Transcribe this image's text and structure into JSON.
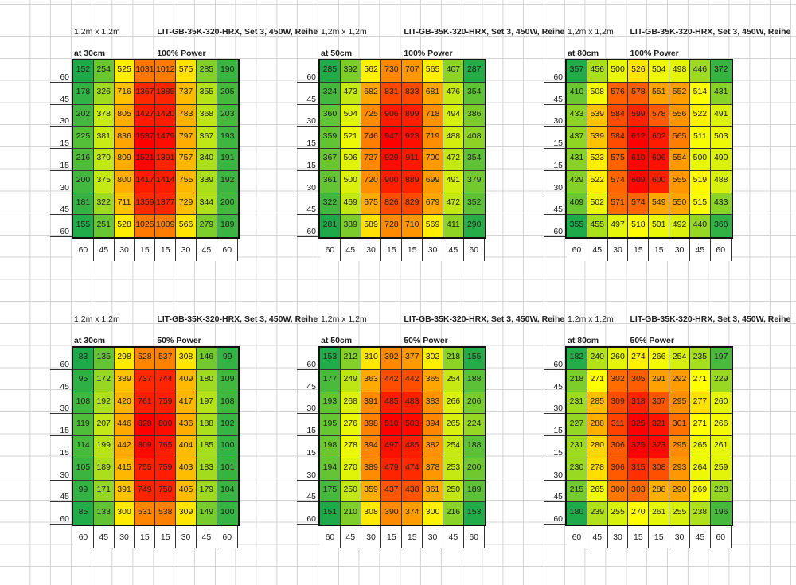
{
  "axis_labels": [
    "60",
    "45",
    "30",
    "15",
    "15",
    "30",
    "45",
    "60"
  ],
  "colors": {
    "low": "#1faa4a",
    "mid": "#ffff00",
    "high": "#ff0000"
  },
  "tables": [
    {
      "size": "1,2m x 1,2m",
      "title": "LIT-GB-35K-320-HRX, Set 3, 450W, Reihe",
      "distance": "at 30cm",
      "power": "100% Power",
      "values": [
        [
          152,
          254,
          525,
          1031,
          1012,
          575,
          285,
          190
        ],
        [
          178,
          326,
          716,
          1367,
          1385,
          737,
          355,
          205
        ],
        [
          202,
          378,
          805,
          1427,
          1420,
          783,
          368,
          203
        ],
        [
          225,
          381,
          836,
          1537,
          1479,
          797,
          367,
          193
        ],
        [
          216,
          370,
          809,
          1521,
          1391,
          757,
          340,
          191
        ],
        [
          200,
          375,
          800,
          1417,
          1414,
          755,
          339,
          192
        ],
        [
          181,
          322,
          711,
          1359,
          1377,
          729,
          344,
          200
        ],
        [
          155,
          251,
          528,
          1025,
          1009,
          566,
          279,
          189
        ]
      ]
    },
    {
      "size": "1,2m x 1,2m",
      "title": "LIT-GB-35K-320-HRX, Set 3, 450W, Reihe",
      "distance": "at 50cm",
      "power": "100% Power",
      "values": [
        [
          285,
          392,
          562,
          730,
          707,
          565,
          407,
          287
        ],
        [
          324,
          473,
          682,
          831,
          833,
          681,
          476,
          354
        ],
        [
          360,
          504,
          725,
          906,
          899,
          718,
          494,
          386
        ],
        [
          359,
          521,
          746,
          947,
          923,
          719,
          488,
          408
        ],
        [
          367,
          506,
          727,
          929,
          911,
          700,
          472,
          354
        ],
        [
          361,
          500,
          720,
          900,
          889,
          699,
          491,
          379
        ],
        [
          322,
          469,
          675,
          826,
          829,
          679,
          472,
          352
        ],
        [
          281,
          389,
          589,
          728,
          710,
          569,
          411,
          290
        ]
      ]
    },
    {
      "size": "1,2m x 1,2m",
      "title": "LIT-GB-35K-320-HRX, Set 3, 450W, Reihe",
      "distance": "at 80cm",
      "power": "100% Power",
      "values": [
        [
          357,
          456,
          500,
          526,
          504,
          498,
          446,
          372
        ],
        [
          410,
          508,
          576,
          578,
          551,
          552,
          514,
          431
        ],
        [
          433,
          539,
          584,
          599,
          578,
          556,
          522,
          491
        ],
        [
          437,
          539,
          584,
          612,
          602,
          565,
          511,
          503
        ],
        [
          431,
          523,
          575,
          610,
          606,
          554,
          500,
          490
        ],
        [
          429,
          522,
          574,
          609,
          600,
          555,
          519,
          488
        ],
        [
          409,
          502,
          571,
          574,
          549,
          550,
          515,
          433
        ],
        [
          355,
          455,
          497,
          518,
          501,
          492,
          440,
          368
        ]
      ]
    },
    {
      "size": "1,2m x 1,2m",
      "title": "LIT-GB-35K-320-HRX, Set 3, 450W, Reihe",
      "distance": "at 30cm",
      "power": "50% Power",
      "values": [
        [
          83,
          135,
          298,
          528,
          537,
          308,
          146,
          99
        ],
        [
          95,
          172,
          389,
          737,
          744,
          409,
          180,
          109
        ],
        [
          108,
          192,
          420,
          761,
          759,
          417,
          197,
          108
        ],
        [
          119,
          207,
          446,
          828,
          800,
          436,
          188,
          102
        ],
        [
          114,
          199,
          442,
          809,
          765,
          404,
          185,
          100
        ],
        [
          105,
          189,
          415,
          755,
          759,
          403,
          183,
          101
        ],
        [
          99,
          171,
          391,
          749,
          750,
          405,
          179,
          104
        ],
        [
          85,
          133,
          300,
          531,
          538,
          309,
          149,
          100
        ]
      ]
    },
    {
      "size": "1,2m x 1,2m",
      "title": "LIT-GB-35K-320-HRX, Set 3, 450W, Reihe",
      "distance": "at 50cm",
      "power": "50% Power",
      "values": [
        [
          153,
          212,
          310,
          392,
          377,
          302,
          218,
          155
        ],
        [
          177,
          249,
          363,
          442,
          442,
          365,
          254,
          188
        ],
        [
          193,
          268,
          391,
          485,
          483,
          383,
          266,
          206
        ],
        [
          195,
          276,
          398,
          510,
          503,
          394,
          265,
          224
        ],
        [
          198,
          278,
          394,
          497,
          485,
          382,
          254,
          188
        ],
        [
          194,
          270,
          389,
          479,
          474,
          378,
          253,
          200
        ],
        [
          175,
          250,
          359,
          437,
          438,
          361,
          250,
          189
        ],
        [
          151,
          210,
          308,
          390,
          374,
          300,
          216,
          153
        ]
      ]
    },
    {
      "size": "1,2m x 1,2m",
      "title": "LIT-GB-35K-320-HRX, Set 3, 450W, Reihe",
      "distance": "at 80cm",
      "power": "50% Power",
      "values": [
        [
          182,
          240,
          260,
          274,
          266,
          254,
          235,
          197
        ],
        [
          218,
          271,
          302,
          305,
          291,
          292,
          271,
          229
        ],
        [
          231,
          285,
          309,
          318,
          307,
          295,
          277,
          260
        ],
        [
          227,
          288,
          311,
          325,
          321,
          301,
          271,
          266
        ],
        [
          231,
          280,
          306,
          325,
          323,
          295,
          265,
          261
        ],
        [
          230,
          278,
          306,
          315,
          308,
          293,
          264,
          259
        ],
        [
          215,
          265,
          300,
          303,
          288,
          290,
          269,
          228
        ],
        [
          180,
          239,
          255,
          270,
          261,
          255,
          238,
          196
        ]
      ]
    }
  ]
}
